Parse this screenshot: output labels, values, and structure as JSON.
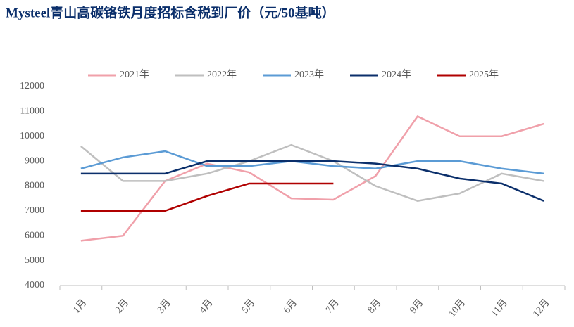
{
  "chart_data": {
    "type": "line",
    "title": "Mysteel青山高碳铬铁月度招标含税到厂价（元/50基吨）",
    "categories": [
      "1月",
      "2月",
      "3月",
      "4月",
      "5月",
      "6月",
      "7月",
      "8月",
      "9月",
      "10月",
      "11月",
      "12月"
    ],
    "series": [
      {
        "name": "2021年",
        "color": "#f0a0aa",
        "values": [
          5800,
          6000,
          8200,
          8900,
          8550,
          7500,
          7450,
          8400,
          10800,
          10000,
          10000,
          10500
        ]
      },
      {
        "name": "2022年",
        "color": "#bfbfbf",
        "values": [
          9600,
          8200,
          8200,
          8500,
          9000,
          9650,
          9000,
          8000,
          7400,
          7700,
          8500,
          8200
        ]
      },
      {
        "name": "2023年",
        "color": "#5b9bd5",
        "values": [
          8700,
          9150,
          9400,
          8800,
          8800,
          9000,
          8800,
          8700,
          9000,
          9000,
          8700,
          8500
        ]
      },
      {
        "name": "2024年",
        "color": "#0b2f6b",
        "values": [
          8500,
          8500,
          8500,
          9000,
          9000,
          9000,
          9000,
          8900,
          8700,
          8300,
          8100,
          7400
        ]
      },
      {
        "name": "2025年",
        "color": "#b00000",
        "values": [
          7000,
          7000,
          7000,
          7600,
          8100,
          8100,
          8100,
          null,
          null,
          null,
          null,
          null
        ]
      }
    ],
    "ylim": [
      4000,
      12000
    ],
    "yticks": [
      4000,
      5000,
      6000,
      7000,
      8000,
      9000,
      10000,
      11000,
      12000
    ],
    "legend": "top"
  }
}
